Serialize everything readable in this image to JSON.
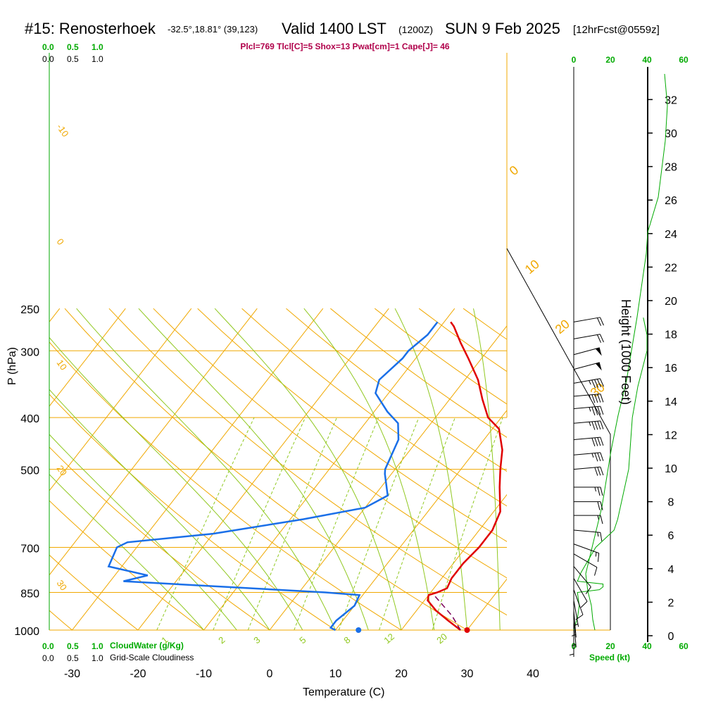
{
  "title": {
    "station": "#15: Renosterhoek",
    "location": "-32.5°,18.81° (39,123)",
    "valid": "Valid 1400 LST",
    "utc": "(1200Z)",
    "date": "SUN 9 Feb 2025",
    "forecast": "[12hrFcst@0559z]"
  },
  "indices_line": "Plcl=769 Tlcl[C]=5 Shox=13 Pwat[cm]=1 Cape[J]= 46",
  "colors": {
    "isotherm": "#f0a800",
    "dry_adiabat": "#f0a800",
    "moist_adiabat": "#90c820",
    "mixing_ratio": "#90c820",
    "temperature": "#e00000",
    "dewpoint": "#1a6fe8",
    "parcel": "#7a0058",
    "green_text": "#00aa00",
    "header_magenta": "#b0004a"
  },
  "chart_data": {
    "type": "line",
    "title": "",
    "xlabel": "Temperature (C)",
    "ylabel": "P (hPa)",
    "right_axis_label": "Height (1000 Feet)",
    "x_ticks": [
      -30,
      -20,
      -10,
      0,
      10,
      20,
      30,
      40
    ],
    "p_ticks": [
      250,
      300,
      400,
      500,
      700,
      850,
      1000
    ],
    "height_ticks": [
      0,
      2,
      4,
      6,
      8,
      10,
      12,
      14,
      16,
      18,
      20,
      22,
      24,
      26,
      28,
      30,
      32
    ],
    "speed_ticks": [
      0,
      20,
      40,
      60
    ],
    "speed_label": "Speed (kt)",
    "cloudwater_ticks": [
      "0.0",
      "0.5",
      "1.0"
    ],
    "cloudwater_label": "CloudWater (g/Kg)",
    "cloudiness_label": "Grid-Scale Cloudiness",
    "dry_adiabat_labels": [
      "-10",
      "0",
      "10",
      "20",
      "30"
    ],
    "moist_adiabat_labels": [
      "0",
      "10",
      "20",
      "30"
    ],
    "mixing_ratio_labels": [
      "1",
      "2",
      "3",
      "5",
      "8",
      "12",
      "20"
    ],
    "series": [
      {
        "name": "temperature",
        "points": [
          [
            29,
            1000
          ],
          [
            26,
            960
          ],
          [
            23,
            920
          ],
          [
            20.5,
            880
          ],
          [
            20,
            860
          ],
          [
            21,
            850
          ],
          [
            22,
            835
          ],
          [
            21.5,
            800
          ],
          [
            21.5,
            750
          ],
          [
            22,
            700
          ],
          [
            22,
            650
          ],
          [
            21,
            600
          ],
          [
            18,
            540
          ],
          [
            16,
            500
          ],
          [
            14,
            460
          ],
          [
            11,
            420
          ],
          [
            8,
            400
          ],
          [
            5,
            370
          ],
          [
            2,
            340
          ],
          [
            -2,
            310
          ],
          [
            -5,
            290
          ],
          [
            -8,
            270
          ],
          [
            -9,
            265
          ]
        ]
      },
      {
        "name": "dewpoint",
        "points": [
          [
            10,
            1000
          ],
          [
            9,
            990
          ],
          [
            9,
            960
          ],
          [
            10,
            900
          ],
          [
            9.5,
            860
          ],
          [
            4,
            850
          ],
          [
            -28,
            810
          ],
          [
            -25,
            790
          ],
          [
            -32,
            760
          ],
          [
            -33,
            700
          ],
          [
            -32,
            685
          ],
          [
            -20,
            660
          ],
          [
            -8,
            620
          ],
          [
            0,
            590
          ],
          [
            2,
            560
          ],
          [
            -1,
            510
          ],
          [
            -1.5,
            500
          ],
          [
            -3,
            440
          ],
          [
            -5,
            410
          ],
          [
            -8,
            390
          ],
          [
            -12,
            360
          ],
          [
            -13,
            340
          ],
          [
            -12,
            310
          ],
          [
            -12,
            300
          ],
          [
            -11,
            280
          ],
          [
            -11,
            265
          ]
        ]
      },
      {
        "name": "parcel",
        "points": [
          [
            29,
            1000
          ],
          [
            26,
            940
          ],
          [
            20.5,
            855
          ]
        ]
      }
    ],
    "surface_temperature": 30,
    "surface_dewpoint": 13.5,
    "wind_barbs": [
      {
        "p": 265,
        "dir": 260,
        "spd": 20
      },
      {
        "p": 285,
        "dir": 260,
        "spd": 20
      },
      {
        "p": 305,
        "dir": 255,
        "spd": 50
      },
      {
        "p": 325,
        "dir": 255,
        "spd": 50
      },
      {
        "p": 345,
        "dir": 260,
        "spd": 45
      },
      {
        "p": 365,
        "dir": 265,
        "spd": 45
      },
      {
        "p": 385,
        "dir": 265,
        "spd": 45
      },
      {
        "p": 410,
        "dir": 265,
        "spd": 45
      },
      {
        "p": 440,
        "dir": 265,
        "spd": 40
      },
      {
        "p": 470,
        "dir": 265,
        "spd": 35
      },
      {
        "p": 500,
        "dir": 265,
        "spd": 30
      },
      {
        "p": 540,
        "dir": 270,
        "spd": 25
      },
      {
        "p": 575,
        "dir": 270,
        "spd": 20
      },
      {
        "p": 610,
        "dir": 270,
        "spd": 15
      },
      {
        "p": 650,
        "dir": 275,
        "spd": 15
      },
      {
        "p": 690,
        "dir": 290,
        "spd": 15
      },
      {
        "p": 720,
        "dir": 300,
        "spd": 10
      },
      {
        "p": 760,
        "dir": 320,
        "spd": 10
      },
      {
        "p": 800,
        "dir": 330,
        "spd": 10
      },
      {
        "p": 840,
        "dir": 340,
        "spd": 10
      },
      {
        "p": 880,
        "dir": 350,
        "spd": 5
      },
      {
        "p": 920,
        "dir": 355,
        "spd": 5
      },
      {
        "p": 960,
        "dir": 355,
        "spd": 5
      },
      {
        "p": 1000,
        "dir": 0,
        "spd": 5
      }
    ],
    "wind_speed_profile": [
      [
        0,
        1000
      ],
      [
        2,
        950
      ],
      [
        3,
        900
      ],
      [
        2,
        850
      ],
      [
        14,
        840
      ],
      [
        16,
        830
      ],
      [
        16,
        820
      ],
      [
        2,
        810
      ],
      [
        4,
        780
      ],
      [
        12,
        700
      ],
      [
        22,
        650
      ],
      [
        24,
        620
      ],
      [
        30,
        500
      ],
      [
        32,
        400
      ],
      [
        35,
        350
      ],
      [
        40,
        300
      ],
      [
        40,
        280
      ],
      [
        38,
        260
      ]
    ],
    "height_pressure": [
      [
        0,
        1000
      ],
      [
        2,
        905
      ],
      [
        4,
        862
      ],
      [
        6,
        815
      ],
      [
        8,
        763
      ],
      [
        10,
        700
      ],
      [
        12,
        650
      ],
      [
        14,
        600
      ],
      [
        16,
        550
      ],
      [
        18,
        500
      ],
      [
        20,
        465
      ],
      [
        22,
        430
      ],
      [
        24,
        400
      ],
      [
        26,
        370
      ],
      [
        28,
        340
      ],
      [
        30,
        305
      ],
      [
        32,
        280
      ]
    ]
  }
}
